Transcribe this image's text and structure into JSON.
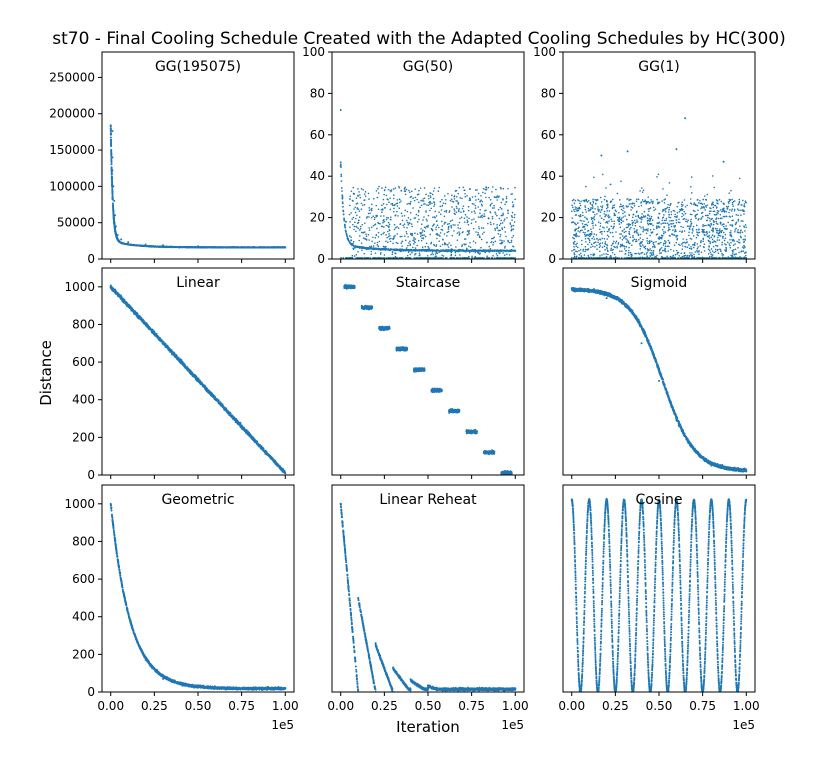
{
  "chart_data": {
    "type": "scatter",
    "title": "st70 - Final Cooling Schedule Created with the Adapted Cooling Schedules by HC(300)",
    "xlabel": "Iteration",
    "ylabel": "Distance",
    "x_offset_text": "1e5",
    "series_color": "#1f77b4",
    "x_ticks": [
      0,
      0.25,
      0.5,
      0.75,
      1.0
    ],
    "x_tick_labels": [
      "0.00",
      "0.25",
      "0.50",
      "0.75",
      "1.00"
    ],
    "panels": [
      {
        "name": "GG(195075)",
        "row": 0,
        "col": 0,
        "xlim": [
          -0.05,
          1.05
        ],
        "ylim": [
          0,
          285000
        ],
        "y_ticks": [
          0,
          50000,
          100000,
          150000,
          200000,
          250000
        ],
        "y_tick_labels": [
          "0",
          "50000",
          "100000",
          "150000",
          "200000",
          "250000"
        ],
        "show_x_labels": false,
        "points": [
          [
            0.01,
            176000
          ],
          [
            0.01,
            140000
          ],
          [
            0.01,
            122000
          ],
          [
            0.015,
            100000
          ],
          [
            0.02,
            80000
          ],
          [
            0.025,
            60000
          ],
          [
            0.03,
            45000
          ],
          [
            0.04,
            33000
          ],
          [
            0.06,
            27000
          ],
          [
            0.1,
            23000
          ],
          [
            0.2,
            20000
          ],
          [
            0.3,
            19000
          ],
          [
            0.5,
            17500
          ],
          [
            0.75,
            16500
          ],
          [
            1.0,
            16000
          ]
        ]
      },
      {
        "name": "GG(50)",
        "row": 0,
        "col": 1,
        "xlim": [
          -0.05,
          1.05
        ],
        "ylim": [
          0,
          100
        ],
        "y_ticks": [
          0,
          20,
          40,
          60,
          80,
          100
        ],
        "y_tick_labels": [
          "0",
          "20",
          "40",
          "60",
          "80",
          "100"
        ],
        "show_x_labels": false,
        "points": [
          [
            0.0,
            72
          ],
          [
            0.0,
            45
          ],
          [
            0.01,
            30
          ],
          [
            0.03,
            18
          ],
          [
            0.06,
            9
          ],
          [
            0.1,
            6
          ],
          [
            0.2,
            5
          ],
          [
            0.4,
            4.5
          ],
          [
            0.7,
            4
          ],
          [
            1.0,
            4
          ]
        ],
        "scatter_band": [
          1,
          35
        ]
      },
      {
        "name": "GG(1)",
        "row": 0,
        "col": 2,
        "xlim": [
          -0.05,
          1.05
        ],
        "ylim": [
          0,
          100
        ],
        "y_ticks": [
          0,
          20,
          40,
          60,
          80,
          100
        ],
        "y_tick_labels": [
          "0",
          "20",
          "40",
          "60",
          "80",
          "100"
        ],
        "show_x_labels": false,
        "points": [
          [
            0.65,
            68
          ],
          [
            0.32,
            52
          ],
          [
            0.6,
            53
          ],
          [
            0.17,
            50
          ],
          [
            0.87,
            47
          ]
        ],
        "scatter_band": [
          0,
          29
        ]
      },
      {
        "name": "Linear",
        "row": 1,
        "col": 0,
        "xlim": [
          -0.05,
          1.05
        ],
        "ylim": [
          0,
          1100
        ],
        "y_ticks": [
          0,
          200,
          400,
          600,
          800,
          1000
        ],
        "y_tick_labels": [
          "0",
          "200",
          "400",
          "600",
          "800",
          "1000"
        ],
        "show_x_labels": false,
        "points": [
          [
            0,
            1000
          ],
          [
            0.25,
            750
          ],
          [
            0.5,
            500
          ],
          [
            0.75,
            250
          ],
          [
            1.0,
            10
          ]
        ]
      },
      {
        "name": "Staircase",
        "row": 1,
        "col": 1,
        "xlim": [
          -0.05,
          1.05
        ],
        "ylim": [
          0,
          1100
        ],
        "y_ticks": [],
        "y_tick_labels": [],
        "show_x_labels": false,
        "points": [
          [
            0.05,
            1000
          ],
          [
            0.15,
            889
          ],
          [
            0.25,
            778
          ],
          [
            0.35,
            667
          ],
          [
            0.45,
            556
          ],
          [
            0.55,
            445
          ],
          [
            0.65,
            334
          ],
          [
            0.75,
            222
          ],
          [
            0.85,
            111
          ],
          [
            0.95,
            10
          ]
        ]
      },
      {
        "name": "Sigmoid",
        "row": 1,
        "col": 2,
        "xlim": [
          -0.05,
          1.05
        ],
        "ylim": [
          0,
          1100
        ],
        "y_ticks": [],
        "y_tick_labels": [],
        "show_x_labels": false,
        "points": [
          [
            0,
            990
          ],
          [
            0.2,
            940
          ],
          [
            0.4,
            700
          ],
          [
            0.5,
            500
          ],
          [
            0.6,
            290
          ],
          [
            0.8,
            50
          ],
          [
            1.0,
            20
          ]
        ]
      },
      {
        "name": "Geometric",
        "row": 2,
        "col": 0,
        "xlim": [
          -0.05,
          1.05
        ],
        "ylim": [
          0,
          1100
        ],
        "y_ticks": [
          0,
          200,
          400,
          600,
          800,
          1000
        ],
        "y_tick_labels": [
          "0",
          "200",
          "400",
          "600",
          "800",
          "1000"
        ],
        "show_x_labels": true,
        "points": [
          [
            0,
            1000
          ],
          [
            0.05,
            650
          ],
          [
            0.1,
            420
          ],
          [
            0.2,
            170
          ],
          [
            0.3,
            70
          ],
          [
            0.5,
            25
          ],
          [
            1.0,
            20
          ]
        ]
      },
      {
        "name": "Linear Reheat",
        "row": 2,
        "col": 1,
        "xlim": [
          -0.05,
          1.05
        ],
        "ylim": [
          0,
          1100
        ],
        "y_ticks": [],
        "y_tick_labels": [],
        "show_x_labels": true,
        "points": [
          [
            0,
            1000
          ],
          [
            0.1,
            0
          ],
          [
            0.1,
            500
          ],
          [
            0.2,
            0
          ],
          [
            0.2,
            260
          ],
          [
            0.3,
            0
          ],
          [
            0.3,
            130
          ],
          [
            0.4,
            0
          ],
          [
            1.0,
            15
          ]
        ]
      },
      {
        "name": "Cosine",
        "row": 2,
        "col": 2,
        "xlim": [
          -0.05,
          1.05
        ],
        "ylim": [
          0,
          1100
        ],
        "y_ticks": [],
        "y_tick_labels": [],
        "show_x_labels": true,
        "cycles": 10,
        "amplitude": [
          0,
          1020
        ]
      }
    ]
  }
}
